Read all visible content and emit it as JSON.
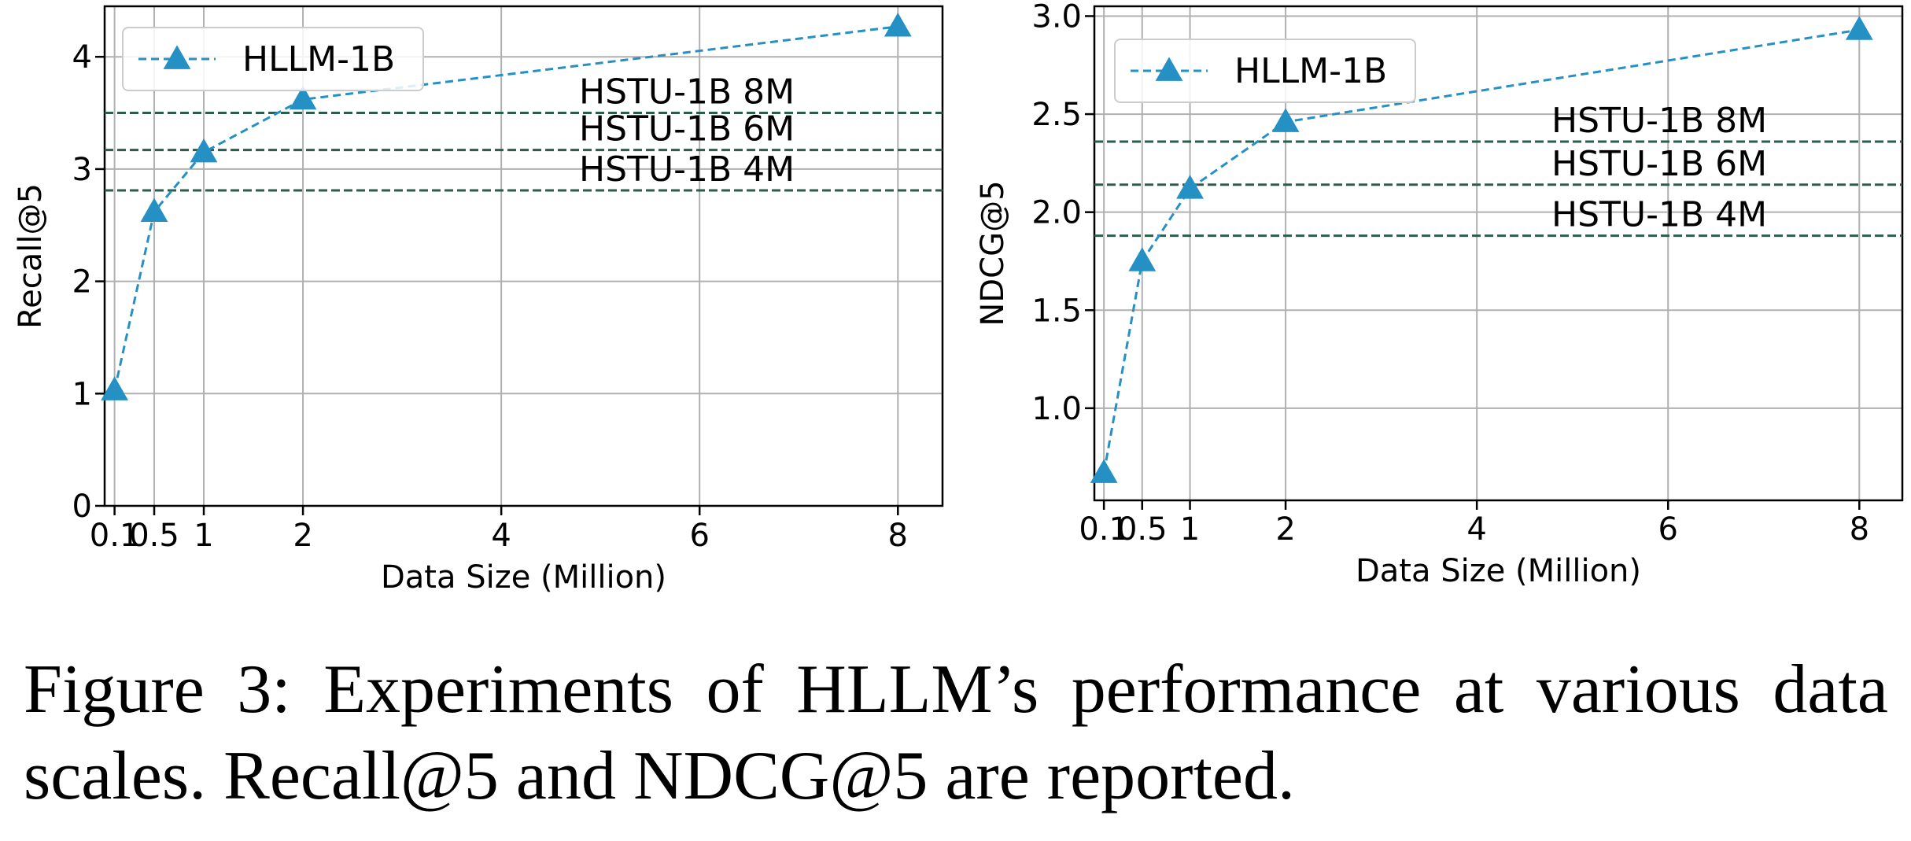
{
  "caption": "Figure 3: Experiments of HLLM’s performance at various data scales. Recall@5 and NDCG@5 are reported.",
  "colors": {
    "series": "#2590c4",
    "reference": "#2a5e4c",
    "grid": "#b0b0b0"
  },
  "chart_data": [
    {
      "type": "line",
      "xlabel": "Data Size (Million)",
      "ylabel": "Recall@5",
      "x_ticks": [
        0.1,
        0.5,
        1,
        2,
        4,
        6,
        8
      ],
      "x_tick_labels": [
        "0.1",
        "0.5",
        "1",
        "2",
        "4",
        "6",
        "8"
      ],
      "y_ticks": [
        0,
        1,
        2,
        3,
        4
      ],
      "y_tick_labels": [
        "0",
        "1",
        "2",
        "3",
        "4"
      ],
      "ylim": [
        0,
        4.45
      ],
      "grid": true,
      "legend_position": "top-left",
      "series": [
        {
          "name": "HLLM-1B",
          "marker": "triangle",
          "style": "dashed",
          "x": [
            0.1,
            0.5,
            1,
            2,
            8
          ],
          "y": [
            1.03,
            2.62,
            3.15,
            3.62,
            4.27
          ]
        }
      ],
      "reference_lines": [
        {
          "label": "HSTU-1B 8M",
          "y": 3.5
        },
        {
          "label": "HSTU-1B 6M",
          "y": 3.17
        },
        {
          "label": "HSTU-1B 4M",
          "y": 2.81
        }
      ]
    },
    {
      "type": "line",
      "xlabel": "Data Size (Million)",
      "ylabel": "NDCG@5",
      "x_ticks": [
        0.1,
        0.5,
        1,
        2,
        4,
        6,
        8
      ],
      "x_tick_labels": [
        "0.1",
        "0.5",
        "1",
        "2",
        "4",
        "6",
        "8"
      ],
      "y_ticks": [
        1.0,
        1.5,
        2.0,
        2.5,
        3.0
      ],
      "y_tick_labels": [
        "1.0",
        "1.5",
        "2.0",
        "2.5",
        "3.0"
      ],
      "ylim": [
        0.53,
        3.05
      ],
      "grid": true,
      "legend_position": "top-left",
      "series": [
        {
          "name": "HLLM-1B",
          "marker": "triangle",
          "style": "dashed",
          "x": [
            0.1,
            0.5,
            1,
            2,
            8
          ],
          "y": [
            0.67,
            1.75,
            2.12,
            2.46,
            2.93
          ]
        }
      ],
      "reference_lines": [
        {
          "label": "HSTU-1B 8M",
          "y": 2.36
        },
        {
          "label": "HSTU-1B 6M",
          "y": 2.14
        },
        {
          "label": "HSTU-1B 4M",
          "y": 1.88
        }
      ]
    }
  ]
}
